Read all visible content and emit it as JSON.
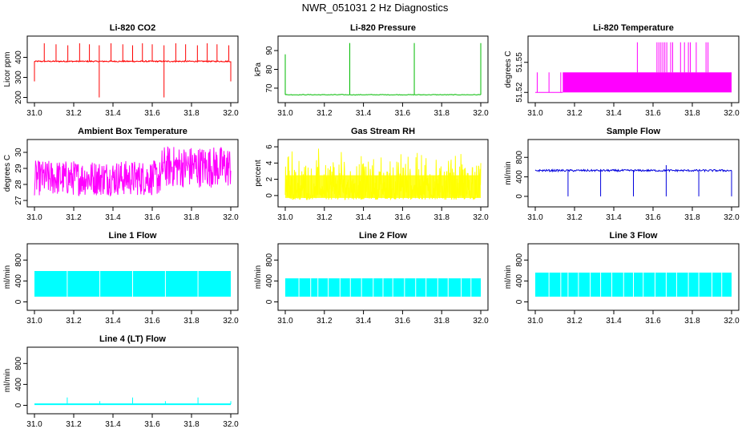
{
  "title": "NWR_051031  2 Hz Diagnostics",
  "chart_data": [
    {
      "type": "line",
      "title": "Li-820 CO2",
      "ylabel": "Licor ppm",
      "color": "#ff0000",
      "xlim": [
        31.0,
        32.0
      ],
      "ylim": [
        190,
        490
      ],
      "xticks": [
        "31.0",
        "31.2",
        "31.4",
        "31.6",
        "31.8",
        "32.0"
      ],
      "yticks": [
        200,
        300,
        400
      ],
      "series": [
        {
          "name": "Li-820 CO2",
          "baseline": 380,
          "min": 200,
          "max": 470
        }
      ]
    },
    {
      "type": "line",
      "title": "Li-820 Pressure",
      "ylabel": "kPa",
      "color": "#00bb00",
      "xlim": [
        31.0,
        32.0
      ],
      "ylim": [
        64,
        96
      ],
      "xticks": [
        "31.0",
        "31.2",
        "31.4",
        "31.6",
        "31.8",
        "32.0"
      ],
      "yticks": [
        70,
        80,
        90
      ],
      "series": [
        {
          "name": "Li-820 Pressure",
          "baseline": 66.5,
          "min": 66,
          "max": 94
        }
      ]
    },
    {
      "type": "line",
      "title": "Li-820 Temperature",
      "ylabel": "degrees C",
      "color": "#ff00ff",
      "xlim": [
        31.0,
        32.0
      ],
      "ylim": [
        51.513,
        51.573
      ],
      "xticks": [
        "31.0",
        "31.2",
        "31.4",
        "31.6",
        "31.8",
        "32.0"
      ],
      "yticks": [
        51.52,
        51.55
      ],
      "series": [
        {
          "name": "Li-820 Temperature",
          "levels": [
            51.52,
            51.54,
            51.57
          ]
        }
      ]
    },
    {
      "type": "line",
      "title": "Ambient Box Temperature",
      "ylabel": "degrees C",
      "color": "#ff00ff",
      "xlim": [
        31.0,
        32.0
      ],
      "ylim": [
        26.8,
        30.6
      ],
      "xticks": [
        "31.0",
        "31.2",
        "31.4",
        "31.6",
        "31.8",
        "32.0"
      ],
      "yticks": [
        27,
        28,
        29,
        30
      ],
      "series": [
        {
          "name": "Ambient Box Temperature",
          "min": 27.0,
          "max": 30.5
        }
      ]
    },
    {
      "type": "line",
      "title": "Gas Stream RH",
      "ylabel": "percent",
      "color": "#ffff00",
      "xlim": [
        31.0,
        32.0
      ],
      "ylim": [
        -1,
        6.5
      ],
      "xticks": [
        "31.0",
        "31.2",
        "31.4",
        "31.6",
        "31.8",
        "32.0"
      ],
      "yticks": [
        0,
        2,
        4,
        6
      ],
      "series": [
        {
          "name": "Gas Stream RH",
          "min": -0.5,
          "max": 6
        }
      ]
    },
    {
      "type": "line",
      "title": "Sample Flow",
      "ylabel": "ml/min",
      "color": "#0000dd",
      "xlim": [
        31.0,
        32.0
      ],
      "ylim": [
        -150,
        1100
      ],
      "xticks": [
        "31.0",
        "31.2",
        "31.4",
        "31.6",
        "31.8",
        "32.0"
      ],
      "yticks": [
        0,
        400,
        800
      ],
      "series": [
        {
          "name": "Sample Flow",
          "baseline": 530,
          "min": 0,
          "max": 640
        }
      ]
    },
    {
      "type": "area",
      "title": "Line 1 Flow",
      "ylabel": "ml/min",
      "color": "#00ffff",
      "xlim": [
        31.0,
        32.0
      ],
      "ylim": [
        -100,
        1050
      ],
      "xticks": [
        "31.0",
        "31.2",
        "31.4",
        "31.6",
        "31.8",
        "32.0"
      ],
      "yticks": [
        0,
        400,
        800
      ],
      "series": [
        {
          "name": "Line 1 Flow",
          "upper": 590,
          "lower": 100
        }
      ]
    },
    {
      "type": "area",
      "title": "Line 2 Flow",
      "ylabel": "ml/min",
      "color": "#00ffff",
      "xlim": [
        31.0,
        32.0
      ],
      "ylim": [
        -100,
        1050
      ],
      "xticks": [
        "31.0",
        "31.2",
        "31.4",
        "31.6",
        "31.8",
        "32.0"
      ],
      "yticks": [
        0,
        400,
        800
      ],
      "series": [
        {
          "name": "Line 2 Flow",
          "upper": 450,
          "lower": 100
        }
      ]
    },
    {
      "type": "area",
      "title": "Line 3 Flow",
      "ylabel": "ml/min",
      "color": "#00ffff",
      "xlim": [
        31.0,
        32.0
      ],
      "ylim": [
        -100,
        1050
      ],
      "xticks": [
        "31.0",
        "31.2",
        "31.4",
        "31.6",
        "31.8",
        "32.0"
      ],
      "yticks": [
        0,
        400,
        800
      ],
      "series": [
        {
          "name": "Line 3 Flow",
          "upper": 560,
          "lower": 100
        }
      ]
    },
    {
      "type": "line",
      "title": "Line 4 (LT) Flow",
      "ylabel": "ml/min",
      "color": "#00ffff",
      "xlim": [
        31.0,
        32.0
      ],
      "ylim": [
        -100,
        1050
      ],
      "xticks": [
        "31.0",
        "31.2",
        "31.4",
        "31.6",
        "31.8",
        "32.0"
      ],
      "yticks": [
        0,
        400,
        800
      ],
      "series": [
        {
          "name": "Line 4 (LT) Flow",
          "baseline": 20,
          "spikes_at": [
            31.167,
            31.333,
            31.5,
            31.667,
            31.833,
            32.0
          ],
          "spike_max": 150
        }
      ]
    }
  ]
}
